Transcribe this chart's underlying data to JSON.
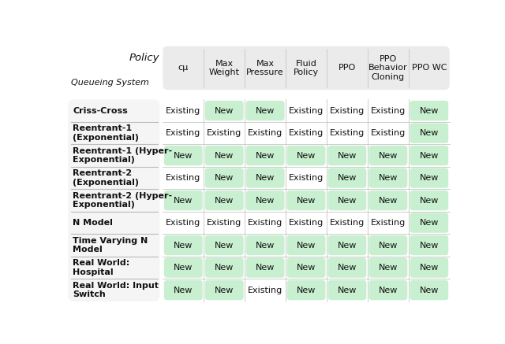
{
  "col_headers": [
    "cμ",
    "Max\nWeight",
    "Max\nPressure",
    "Fluid\nPolicy",
    "PPO",
    "PPO\nBehavior\nCloning",
    "PPO WC"
  ],
  "row_headers": [
    "Criss-Cross",
    "Reentrant-1\n(Exponential)",
    "Reentrant-1 (Hyper-\nExponential)",
    "Reentrant-2\n(Exponential)",
    "Reentrant-2 (Hyper-\nExponential)",
    "N Model",
    "Time Varying N\nModel",
    "Real World:\nHospital",
    "Real World: Input\nSwitch"
  ],
  "policy_label": "Policy",
  "queueing_label": "Queueing System",
  "data": [
    [
      "Existing",
      "New",
      "New",
      "Existing",
      "Existing",
      "Existing",
      "New"
    ],
    [
      "Existing",
      "Existing",
      "Existing",
      "Existing",
      "Existing",
      "Existing",
      "New"
    ],
    [
      "New",
      "New",
      "New",
      "New",
      "New",
      "New",
      "New"
    ],
    [
      "Existing",
      "New",
      "New",
      "Existing",
      "New",
      "New",
      "New"
    ],
    [
      "New",
      "New",
      "New",
      "New",
      "New",
      "New",
      "New"
    ],
    [
      "Existing",
      "Existing",
      "Existing",
      "Existing",
      "Existing",
      "Existing",
      "New"
    ],
    [
      "New",
      "New",
      "New",
      "New",
      "New",
      "New",
      "New"
    ],
    [
      "New",
      "New",
      "New",
      "New",
      "New",
      "New",
      "New"
    ],
    [
      "New",
      "New",
      "Existing",
      "New",
      "New",
      "New",
      "New"
    ]
  ],
  "new_color": "#c8f0d0",
  "existing_color": "#ffffff",
  "header_bg": "#ebebeb",
  "row_header_bg": "#f5f5f5",
  "row_divider_color": "#bbbbbb",
  "col_divider_color": "#bbbbbb",
  "text_color": "#111111",
  "header_text_color": "#111111",
  "fig_bg": "#ffffff",
  "font_size": 8.0,
  "header_font_size": 8.5,
  "row_label_font_size": 8.0,
  "figw": 6.4,
  "figh": 4.37
}
